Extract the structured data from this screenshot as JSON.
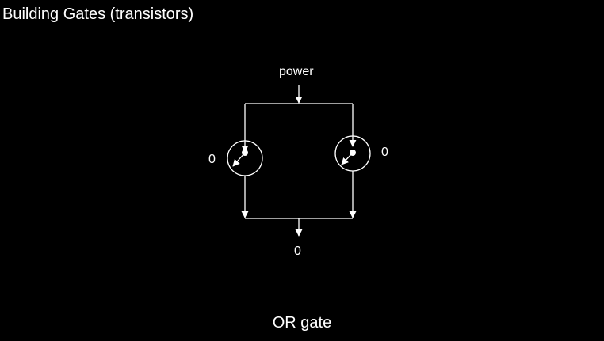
{
  "slide": {
    "title": "Building Gates (transistors)",
    "caption": "OR gate"
  },
  "circuit": {
    "power_label": "power",
    "left_input": "0",
    "right_input": "0",
    "output": "0"
  },
  "colors": {
    "background": "#000000",
    "foreground": "#ffffff"
  }
}
